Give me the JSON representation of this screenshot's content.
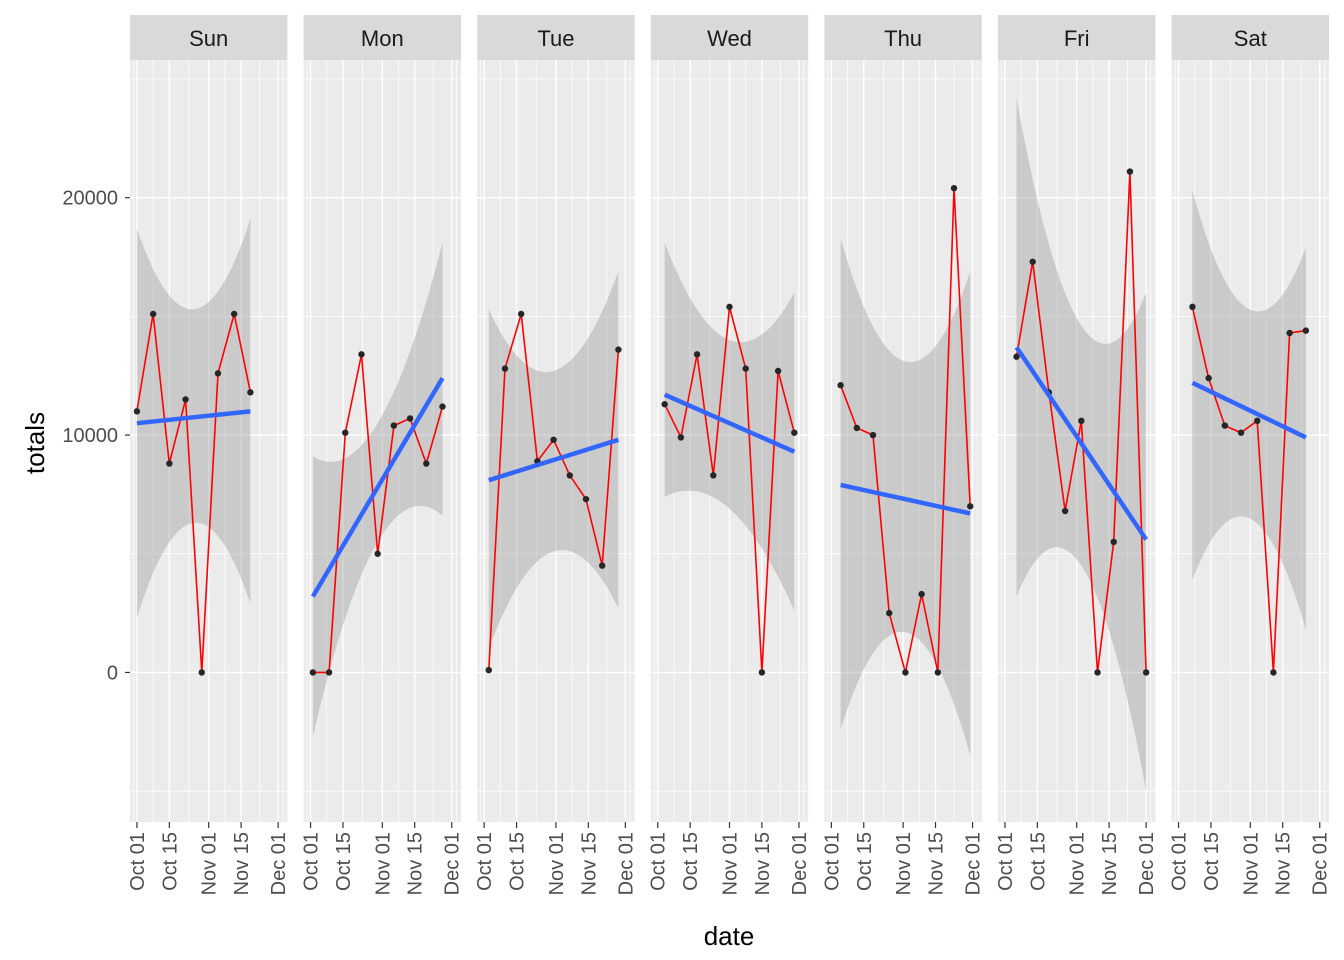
{
  "chart_data": {
    "type": "line",
    "xlabel": "date",
    "ylabel": "totals",
    "ylim": [
      -6300,
      25800
    ],
    "y_ticks": [
      {
        "value": 0,
        "label": "0"
      },
      {
        "value": 10000,
        "label": "10000"
      },
      {
        "value": 20000,
        "label": "20000"
      }
    ],
    "xlim": [
      "2017-09-28",
      "2017-12-05"
    ],
    "x_ticks": [
      {
        "value": "2017-10-01",
        "label": "Oct 01"
      },
      {
        "value": "2017-10-15",
        "label": "Oct 15"
      },
      {
        "value": "2017-11-01",
        "label": "Nov 01"
      },
      {
        "value": "2017-11-15",
        "label": "Nov 15"
      },
      {
        "value": "2017-12-01",
        "label": "Dec 01"
      }
    ],
    "panel_background": "#ebebeb",
    "strip_background": "#d9d9d9",
    "grid": true,
    "colors": {
      "line": "#ff0000",
      "points": "#262626",
      "trend": "#3366ff",
      "ribbon": "#999999"
    },
    "panels": [
      {
        "label": "Sun",
        "x": [
          "2017-10-01",
          "2017-10-08",
          "2017-10-15",
          "2017-10-22",
          "2017-10-29",
          "2017-11-05",
          "2017-11-12",
          "2017-11-19"
        ],
        "y": [
          11000,
          15100,
          8800,
          11500,
          0,
          12600,
          15100,
          11800
        ],
        "trend": {
          "start": 10500,
          "end": 11000
        },
        "ribbon": {
          "start": [
            2300,
            18700
          ],
          "mid": [
            6300,
            15300
          ],
          "end": [
            2900,
            19100
          ]
        }
      },
      {
        "label": "Mon",
        "x": [
          "2017-10-02",
          "2017-10-09",
          "2017-10-16",
          "2017-10-23",
          "2017-10-30",
          "2017-11-06",
          "2017-11-13",
          "2017-11-20",
          "2017-11-27"
        ],
        "y": [
          0,
          0,
          10100,
          13400,
          5000,
          10400,
          10700,
          8800,
          11200
        ],
        "trend": {
          "start": 3200,
          "end": 12400
        },
        "ribbon": {
          "start": [
            -2700,
            9100
          ],
          "mid": [
            5500,
            10500
          ],
          "end": [
            6600,
            18100
          ]
        }
      },
      {
        "label": "Tue",
        "x": [
          "2017-10-03",
          "2017-10-10",
          "2017-10-17",
          "2017-10-24",
          "2017-10-31",
          "2017-11-07",
          "2017-11-14",
          "2017-11-21",
          "2017-11-28"
        ],
        "y": [
          100,
          12800,
          15100,
          8900,
          9800,
          8300,
          7300,
          4500,
          13600
        ],
        "trend": {
          "start": 8100,
          "end": 9800
        },
        "ribbon": {
          "start": [
            1000,
            15300
          ],
          "mid": [
            5100,
            12700
          ],
          "end": [
            2700,
            16900
          ]
        }
      },
      {
        "label": "Wed",
        "x": [
          "2017-10-04",
          "2017-10-11",
          "2017-10-18",
          "2017-10-25",
          "2017-11-01",
          "2017-11-08",
          "2017-11-15",
          "2017-11-22",
          "2017-11-29"
        ],
        "y": [
          11300,
          9900,
          13400,
          8300,
          15400,
          12800,
          0,
          12700,
          10100
        ],
        "trend": {
          "start": 11700,
          "end": 9300
        },
        "ribbon": {
          "start": [
            7400,
            18100
          ],
          "mid": [
            6900,
            14000
          ],
          "end": [
            2600,
            16000
          ]
        }
      },
      {
        "label": "Thu",
        "x": [
          "2017-10-05",
          "2017-10-12",
          "2017-10-19",
          "2017-10-26",
          "2017-11-02",
          "2017-11-09",
          "2017-11-16",
          "2017-11-23",
          "2017-11-30"
        ],
        "y": [
          12100,
          10300,
          10000,
          2500,
          0,
          3300,
          0,
          20400,
          7000
        ],
        "trend": {
          "start": 7900,
          "end": 6700
        },
        "ribbon": {
          "start": [
            -2400,
            18300
          ],
          "mid": [
            1700,
            13100
          ],
          "end": [
            -3500,
            16900
          ]
        }
      },
      {
        "label": "Fri",
        "x": [
          "2017-10-06",
          "2017-10-13",
          "2017-10-20",
          "2017-10-27",
          "2017-11-03",
          "2017-11-10",
          "2017-11-17",
          "2017-11-24",
          "2017-12-01"
        ],
        "y": [
          13300,
          17300,
          11800,
          6800,
          10600,
          0,
          5500,
          21100,
          0
        ],
        "trend": {
          "start": 13700,
          "end": 5600
        },
        "ribbon": {
          "start": [
            3200,
            24200
          ],
          "mid": [
            4500,
            14600
          ],
          "end": [
            -5000,
            16000
          ]
        }
      },
      {
        "label": "Sat",
        "x": [
          "2017-10-07",
          "2017-10-14",
          "2017-10-21",
          "2017-10-28",
          "2017-11-04",
          "2017-11-11",
          "2017-11-18",
          "2017-11-25"
        ],
        "y": [
          15400,
          12400,
          10400,
          10100,
          10600,
          0,
          14300,
          14400
        ],
        "trend": {
          "start": 12200,
          "end": 9900
        },
        "ribbon": {
          "start": [
            3900,
            20300
          ],
          "mid": [
            6500,
            15300
          ],
          "end": [
            1800,
            17900
          ]
        }
      }
    ]
  }
}
